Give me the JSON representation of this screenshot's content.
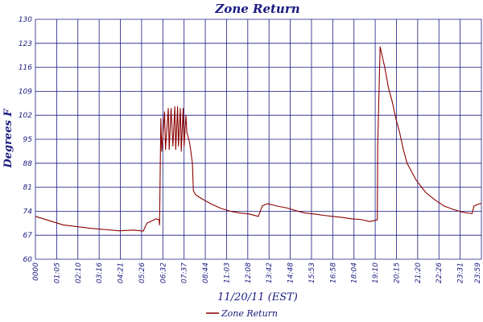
{
  "chart_data": {
    "type": "line",
    "title": "Zone Return",
    "xlabel": "11/20/11 (EST)",
    "ylabel": "Degrees F",
    "ylim": [
      60,
      130
    ],
    "yticks": [
      60,
      67,
      74,
      81,
      88,
      95,
      102,
      109,
      116,
      123,
      130
    ],
    "xlim": [
      0,
      24
    ],
    "xtick_labels": [
      "0000",
      "01:05",
      "02:10",
      "03:16",
      "04:21",
      "05:26",
      "06:32",
      "07:37",
      "08:44",
      "11:03",
      "12:08",
      "13:42",
      "14:48",
      "15:53",
      "16:58",
      "18:04",
      "19:10",
      "20:15",
      "21:20",
      "22:26",
      "23:31",
      "23:59"
    ],
    "grid": true,
    "legend": "bottom-center",
    "colors": {
      "series": "#8b0000",
      "grid": "#1a1a80",
      "text": "#1a1a80"
    },
    "series": [
      {
        "name": "Zone Return",
        "x": [
          0,
          1.5,
          3,
          4.5,
          5.3,
          5.8,
          6.0,
          6.5,
          6.65,
          6.68,
          6.75,
          6.8,
          6.95,
          7.0,
          7.15,
          7.2,
          7.3,
          7.4,
          7.5,
          7.55,
          7.65,
          7.7,
          7.8,
          7.85,
          7.95,
          8.0,
          8.1,
          8.15,
          8.3,
          8.45,
          8.5,
          8.6,
          8.7,
          9.0,
          9.5,
          10.0,
          10.5,
          11.0,
          11.5,
          12.0,
          12.2,
          12.4,
          12.5,
          12.8,
          13.0,
          13.5,
          14.0,
          14.5,
          15.0,
          15.5,
          16.0,
          16.5,
          17.0,
          17.5,
          18.0,
          18.4,
          18.42,
          18.55,
          18.8,
          19.0,
          19.2,
          19.4,
          19.6,
          19.8,
          20.0,
          20.5,
          21.0,
          21.5,
          22.0,
          22.5,
          23.0,
          23.5,
          23.6,
          23.8,
          24.0
        ],
        "values": [
          72.5,
          70.0,
          69.0,
          68.3,
          68.5,
          68.2,
          70.5,
          71.8,
          71.5,
          70.0,
          101,
          91.5,
          103,
          92,
          104,
          92,
          104,
          93,
          104.5,
          92,
          104.5,
          93,
          104,
          91.5,
          104,
          93,
          102,
          97,
          94,
          88,
          80,
          79,
          78.5,
          77.5,
          76,
          74.8,
          74,
          73.5,
          73.2,
          72.5,
          75.5,
          76,
          76.2,
          75.8,
          75.5,
          75,
          74.2,
          73.5,
          73.2,
          72.8,
          72.5,
          72.2,
          71.8,
          71.6,
          71.0,
          71.5,
          93,
          122,
          116,
          110,
          106,
          101,
          97,
          92,
          88,
          83,
          79.5,
          77.3,
          75.5,
          74.5,
          73.7,
          73.3,
          75.5,
          76,
          76.3
        ]
      }
    ]
  }
}
